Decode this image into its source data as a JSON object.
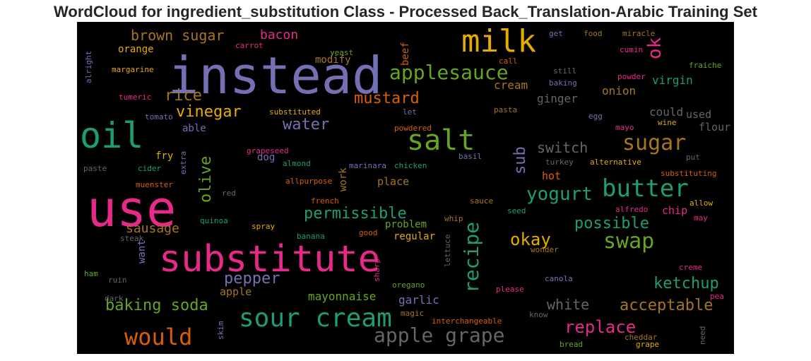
{
  "title": "WordCloud for ingredient_substitution Class - Processed Back_Translation-Arabic Training Set",
  "colors": {
    "background": "#000000",
    "purple": "#7570b3",
    "green": "#1b9e77",
    "orange": "#d95f02",
    "pink": "#e7298a",
    "lime": "#66a61e",
    "gold": "#e6ab02",
    "brown": "#a6761d",
    "gray": "#666666"
  },
  "words": [
    "instead",
    "use",
    "substitute",
    "oil",
    "milk",
    "salt",
    "sour cream",
    "butter",
    "applesauce",
    "apple grape",
    "would",
    "swap",
    "sugar",
    "yogurt",
    "recipe",
    "ok",
    "replace",
    "baking soda",
    "vinegar",
    "olive",
    "permissible",
    "mustard",
    "ketchup",
    "brown sugar",
    "bacon",
    "water",
    "rice",
    "okay",
    "pepper",
    "possible",
    "acceptable",
    "sub",
    "switch",
    "mayonnaise",
    "white",
    "sausage",
    "garlic",
    "ginger",
    "onion",
    "cream",
    "virgin",
    "could",
    "used",
    "flour",
    "orange",
    "modify",
    "beef",
    "fry",
    "dog",
    "able",
    "problem",
    "regular",
    "want",
    "work",
    "place",
    "hot",
    "chip",
    "apple",
    "get",
    "food",
    "miracle",
    "cumin",
    "call",
    "yeast",
    "carrot",
    "margarine",
    "alright",
    "fraiche",
    "still",
    "baking",
    "powder",
    "tumeric",
    "substituted",
    "let",
    "pasta",
    "egg",
    "mayo",
    "wine",
    "tomato",
    "powdered",
    "grapeseed",
    "extra",
    "paste",
    "cider",
    "almond",
    "marinara",
    "chicken",
    "basil",
    "turkey",
    "alternative",
    "put",
    "substituting",
    "allpurpose",
    "muenster",
    "red",
    "french",
    "sauce",
    "allow",
    "seed",
    "whip",
    "alfredo",
    "may",
    "quinoa",
    "spray",
    "good",
    "banana",
    "steak",
    "lettuce",
    "wonder",
    "sharp",
    "creme",
    "ham",
    "ruin",
    "oregano",
    "canola",
    "please",
    "pea",
    "dark",
    "magic",
    "interchangeable",
    "know",
    "skim",
    "bread",
    "cheddar",
    "grape",
    "need"
  ]
}
